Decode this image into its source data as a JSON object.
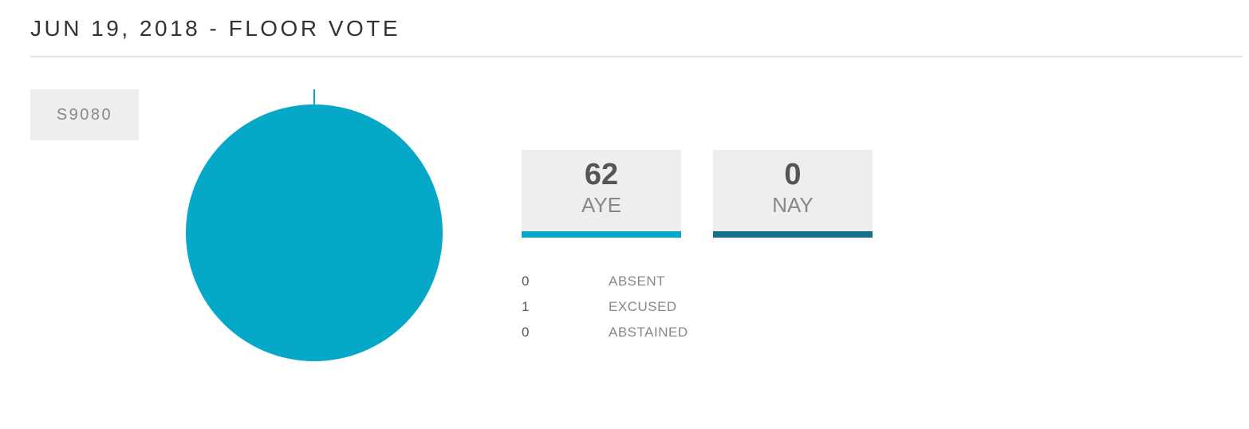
{
  "title": "JUN 19, 2018 - FLOOR VOTE",
  "bill": "S9080",
  "chart_data": {
    "type": "pie",
    "categories": [
      "AYE",
      "NAY"
    ],
    "values": [
      62,
      0
    ],
    "colors": [
      "#05a8c6",
      "#1a6f8a"
    ]
  },
  "other_counts": [
    {
      "value": 0,
      "label": "ABSENT"
    },
    {
      "value": 1,
      "label": "EXCUSED"
    },
    {
      "value": 0,
      "label": "ABSTAINED"
    }
  ]
}
